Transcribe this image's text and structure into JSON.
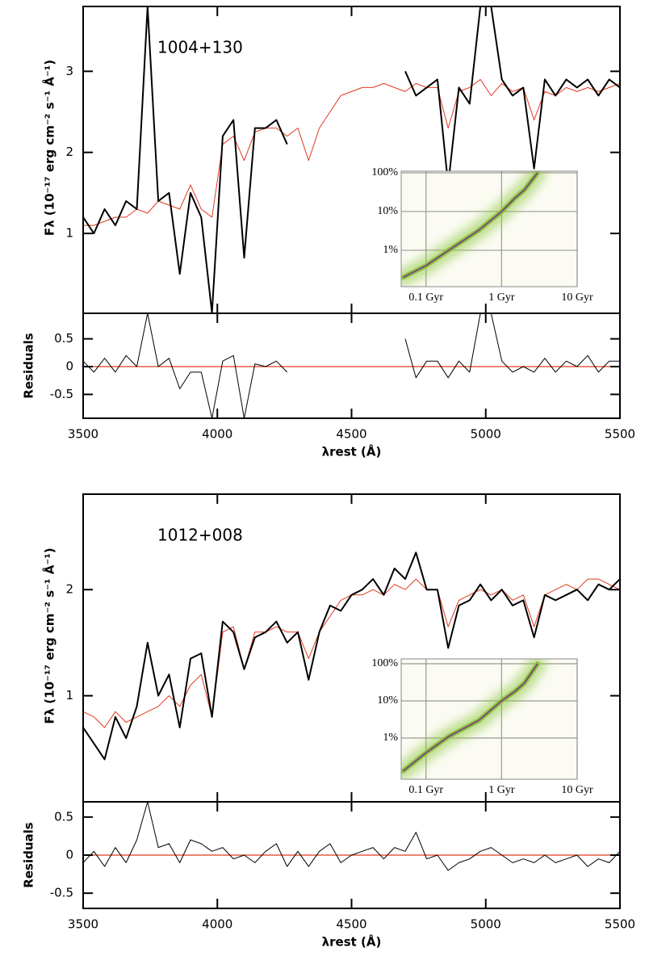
{
  "chart_data": [
    {
      "type": "line",
      "annotation": "1004+130",
      "ylabel": "Fλ (10⁻¹⁷ erg cm⁻² s⁻¹ Å⁻¹)",
      "x": [
        3500,
        3540,
        3580,
        3620,
        3660,
        3700,
        3740,
        3780,
        3820,
        3860,
        3900,
        3940,
        3980,
        4020,
        4060,
        4100,
        4140,
        4180,
        4220,
        4260,
        4300,
        4340,
        4380,
        4420,
        4460,
        4500,
        4540,
        4580,
        4620,
        4660,
        4700,
        4740,
        4780,
        4820,
        4860,
        4900,
        4940,
        4980,
        5020,
        5060,
        5100,
        5140,
        5180,
        5220,
        5260,
        5300,
        5340,
        5380,
        5420,
        5460,
        5500
      ],
      "series": [
        {
          "color": "#e03a1e",
          "width": 1,
          "values": [
            1.1,
            1.1,
            1.15,
            1.2,
            1.2,
            1.3,
            1.25,
            1.4,
            1.35,
            1.3,
            1.6,
            1.3,
            1.2,
            2.1,
            2.2,
            1.9,
            2.25,
            2.3,
            2.3,
            2.2,
            2.3,
            1.9,
            2.3,
            2.5,
            2.7,
            2.75,
            2.8,
            2.8,
            2.85,
            2.8,
            2.75,
            2.85,
            2.8,
            2.8,
            2.3,
            2.75,
            2.8,
            2.9,
            2.7,
            2.85,
            2.75,
            2.8,
            2.4,
            2.75,
            2.7,
            2.8,
            2.75,
            2.8,
            2.75,
            2.8,
            2.85
          ]
        },
        {
          "color": "#000000",
          "width": 2,
          "values": [
            1.2,
            1.0,
            1.3,
            1.1,
            1.4,
            1.3,
            3.8,
            1.4,
            1.5,
            0.5,
            1.5,
            1.2,
            0.02,
            2.2,
            2.4,
            0.7,
            2.3,
            2.3,
            2.4,
            2.1,
            null,
            null,
            null,
            null,
            null,
            null,
            null,
            null,
            null,
            null,
            3.0,
            2.7,
            2.8,
            2.9,
            1.6,
            2.8,
            2.6,
            3.8,
            3.8,
            2.9,
            2.7,
            2.8,
            1.8,
            2.9,
            2.7,
            2.9,
            2.8,
            2.9,
            2.7,
            2.9,
            2.8
          ]
        }
      ],
      "xlim": [
        3500,
        5500
      ],
      "ylim": [
        0.015,
        3.8
      ],
      "yticks": [
        1,
        2,
        3
      ]
    },
    {
      "type": "line",
      "ylabel": "Residuals",
      "xlabel": "λrest (Å)",
      "x": [
        3500,
        3540,
        3580,
        3620,
        3660,
        3700,
        3740,
        3780,
        3820,
        3860,
        3900,
        3940,
        3980,
        4020,
        4060,
        4100,
        4140,
        4180,
        4220,
        4260,
        4300,
        4340,
        4380,
        4420,
        4460,
        4500,
        4540,
        4580,
        4620,
        4660,
        4700,
        4740,
        4780,
        4820,
        4860,
        4900,
        4940,
        4980,
        5020,
        5060,
        5100,
        5140,
        5180,
        5220,
        5260,
        5300,
        5340,
        5380,
        5420,
        5460,
        5500
      ],
      "series": [
        {
          "color": "#000000",
          "width": 1,
          "values": [
            0.1,
            -0.1,
            0.15,
            -0.1,
            0.2,
            0,
            0.96,
            0,
            0.15,
            -0.4,
            -0.1,
            -0.1,
            -0.93,
            0.1,
            0.2,
            -0.93,
            0.05,
            0,
            0.1,
            -0.1,
            null,
            null,
            null,
            null,
            null,
            null,
            null,
            null,
            null,
            null,
            0.5,
            -0.2,
            0.1,
            0.1,
            -0.2,
            0.1,
            -0.1,
            0.96,
            0.96,
            0.1,
            -0.1,
            0,
            -0.1,
            0.15,
            -0.1,
            0.1,
            0,
            0.2,
            -0.1,
            0.1,
            0.1
          ]
        }
      ],
      "hline": {
        "value": 0,
        "color": "#e03a1e"
      },
      "xlim": [
        3500,
        5500
      ],
      "ylim": [
        -0.93,
        0.96
      ],
      "xticks": [
        3500,
        4000,
        4500,
        5000,
        5500
      ],
      "yticks": [
        0.5,
        0,
        -0.5
      ]
    },
    {
      "type": "line",
      "log_x": true,
      "log_y": true,
      "grid": true,
      "x": [
        0.05,
        0.1,
        0.2,
        0.5,
        1,
        1.5,
        2,
        3
      ],
      "series": [
        {
          "color": "#8cc63f",
          "peak_color": "#7a2a8c",
          "values": [
            0.2,
            0.4,
            1,
            3.3,
            10,
            22,
            36,
            100
          ]
        }
      ],
      "xlim": [
        0.047,
        10
      ],
      "ylim": [
        0.115,
        110
      ],
      "xticks": [
        {
          "value": 0.1,
          "label": "0.1 Gyr"
        },
        {
          "value": 1,
          "label": "1 Gyr"
        },
        {
          "value": 10,
          "label": "10 Gyr"
        }
      ],
      "yticks": [
        {
          "value": 1,
          "label": "1%"
        },
        {
          "value": 10,
          "label": "10%"
        },
        {
          "value": 100,
          "label": "100%"
        }
      ]
    },
    {
      "type": "line",
      "annotation": "1012+008",
      "ylabel": "Fλ (10⁻¹⁷ erg cm⁻² s⁻¹ Å⁻¹)",
      "x": [
        3500,
        3540,
        3580,
        3620,
        3660,
        3700,
        3740,
        3780,
        3820,
        3860,
        3900,
        3940,
        3980,
        4020,
        4060,
        4100,
        4140,
        4180,
        4220,
        4260,
        4300,
        4340,
        4380,
        4420,
        4460,
        4500,
        4540,
        4580,
        4620,
        4660,
        4700,
        4740,
        4780,
        4820,
        4860,
        4900,
        4940,
        4980,
        5020,
        5060,
        5100,
        5140,
        5180,
        5220,
        5260,
        5300,
        5340,
        5380,
        5420,
        5460,
        5500
      ],
      "series": [
        {
          "color": "#e03a1e",
          "width": 1,
          "values": [
            0.85,
            0.8,
            0.7,
            0.85,
            0.75,
            0.8,
            0.85,
            0.9,
            1.0,
            0.9,
            1.1,
            1.2,
            0.8,
            1.6,
            1.65,
            1.25,
            1.6,
            1.6,
            1.65,
            1.6,
            1.6,
            1.35,
            1.6,
            1.75,
            1.9,
            1.95,
            1.95,
            2.0,
            1.95,
            2.05,
            2.0,
            2.1,
            2.0,
            2.0,
            1.65,
            1.9,
            1.95,
            2.0,
            1.95,
            2.0,
            1.9,
            1.95,
            1.65,
            1.95,
            2.0,
            2.05,
            2.0,
            2.1,
            2.1,
            2.05,
            2.0
          ]
        },
        {
          "color": "#000000",
          "width": 2,
          "values": [
            0.7,
            0.55,
            0.4,
            0.8,
            0.6,
            0.9,
            1.5,
            1.0,
            1.2,
            0.7,
            1.35,
            1.4,
            0.8,
            1.7,
            1.6,
            1.25,
            1.55,
            1.6,
            1.7,
            1.5,
            1.6,
            1.15,
            1.6,
            1.85,
            1.8,
            1.95,
            2.0,
            2.1,
            1.95,
            2.2,
            2.1,
            2.35,
            2.0,
            2.0,
            1.45,
            1.85,
            1.9,
            2.05,
            1.9,
            2.0,
            1.85,
            1.9,
            1.55,
            1.95,
            1.9,
            1.95,
            2.0,
            1.9,
            2.05,
            2.0,
            2.1
          ]
        }
      ],
      "xlim": [
        3500,
        5500
      ],
      "ylim": [
        0,
        2.9
      ],
      "yticks": [
        1,
        2
      ]
    },
    {
      "type": "line",
      "ylabel": "Residuals",
      "xlabel": "λrest (Å)",
      "x": [
        3500,
        3540,
        3580,
        3620,
        3660,
        3700,
        3740,
        3780,
        3820,
        3860,
        3900,
        3940,
        3980,
        4020,
        4060,
        4100,
        4140,
        4180,
        4220,
        4260,
        4300,
        4340,
        4380,
        4420,
        4460,
        4500,
        4540,
        4580,
        4620,
        4660,
        4700,
        4740,
        4780,
        4820,
        4860,
        4900,
        4940,
        4980,
        5020,
        5060,
        5100,
        5140,
        5180,
        5220,
        5260,
        5300,
        5340,
        5380,
        5420,
        5460,
        5500
      ],
      "series": [
        {
          "color": "#000000",
          "width": 1,
          "values": [
            -0.1,
            0.05,
            -0.15,
            0.1,
            -0.1,
            0.2,
            0.7,
            0.1,
            0.15,
            -0.1,
            0.2,
            0.15,
            0.05,
            0.1,
            -0.05,
            0,
            -0.1,
            0.05,
            0.15,
            -0.15,
            0.05,
            -0.15,
            0.05,
            0.15,
            -0.1,
            0,
            0.05,
            0.1,
            -0.05,
            0.1,
            0.05,
            0.3,
            -0.05,
            0,
            -0.2,
            -0.1,
            -0.05,
            0.05,
            0.1,
            0,
            -0.1,
            -0.05,
            -0.1,
            0,
            -0.1,
            -0.05,
            0,
            -0.15,
            -0.05,
            -0.1,
            0.05
          ]
        }
      ],
      "hline": {
        "value": 0,
        "color": "#e03a1e"
      },
      "xlim": [
        3500,
        5500
      ],
      "ylim": [
        -0.7,
        0.7
      ],
      "xticks": [
        3500,
        4000,
        4500,
        5000,
        5500
      ],
      "yticks": [
        0.5,
        0,
        -0.5
      ]
    },
    {
      "type": "line",
      "log_x": true,
      "log_y": true,
      "grid": true,
      "x": [
        0.05,
        0.1,
        0.2,
        0.5,
        1,
        1.5,
        2,
        3
      ],
      "series": [
        {
          "color": "#8cc63f",
          "peak_color": "#7a2a8c",
          "values": [
            0.13,
            0.4,
            1.1,
            3,
            10,
            18,
            30,
            100
          ]
        }
      ],
      "xlim": [
        0.047,
        10
      ],
      "ylim": [
        0.078,
        135
      ],
      "xticks": [
        {
          "value": 0.1,
          "label": "0.1 Gyr"
        },
        {
          "value": 1,
          "label": "1 Gyr"
        },
        {
          "value": 10,
          "label": "10 Gyr"
        }
      ],
      "yticks": [
        {
          "value": 1,
          "label": "1%"
        },
        {
          "value": 10,
          "label": "10%"
        },
        {
          "value": 100,
          "label": "100%"
        }
      ]
    }
  ]
}
